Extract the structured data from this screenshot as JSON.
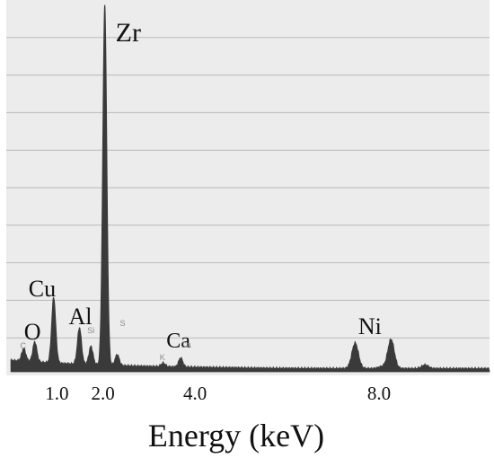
{
  "chart_data": {
    "type": "area",
    "title": "",
    "xlabel": "Energy (keV)",
    "ylabel": "",
    "xlim": [
      -0.1,
      10.4
    ],
    "ylim": [
      0,
      100
    ],
    "grid": true,
    "x_ticks": [
      {
        "value": 1.0,
        "label": "1.0"
      },
      {
        "value": 2.0,
        "label": "2.0"
      },
      {
        "value": 4.0,
        "label": "4.0"
      },
      {
        "value": 8.0,
        "label": "8.0"
      }
    ],
    "peaks": [
      {
        "element": "C",
        "energy": 0.28,
        "height": 3.5
      },
      {
        "element": "O",
        "energy": 0.52,
        "height": 5.5
      },
      {
        "element": "Cu",
        "energy": 0.93,
        "height": 18
      },
      {
        "element": "Al",
        "energy": 1.49,
        "height": 10
      },
      {
        "element": "Si",
        "energy": 1.74,
        "height": 5
      },
      {
        "element": "Zr",
        "energy": 2.04,
        "height": 99
      },
      {
        "element": "S",
        "energy": 2.31,
        "height": 3
      },
      {
        "element": "K",
        "energy": 3.31,
        "height": 1
      },
      {
        "element": "Ca",
        "energy": 3.69,
        "height": 2.5
      },
      {
        "element": "Ni",
        "energy": 7.48,
        "height": 7
      },
      {
        "element": "Ni",
        "energy": 8.26,
        "height": 8
      },
      {
        "element": "Cu",
        "energy": 8.05,
        "height": 0.5
      },
      {
        "element": "",
        "energy": 9.0,
        "height": 1
      }
    ],
    "element_labels": [
      {
        "text": "Zr",
        "energy": 2.04,
        "size": "large"
      },
      {
        "text": "Cu",
        "energy": 0.93,
        "size": "large"
      },
      {
        "text": "Al",
        "energy": 1.49,
        "size": "large"
      },
      {
        "text": "O",
        "energy": 0.52,
        "size": "large"
      },
      {
        "text": "Ca",
        "energy": 3.69,
        "size": "large"
      },
      {
        "text": "Ni",
        "energy": 7.9,
        "size": "large"
      },
      {
        "text": "C",
        "energy": 0.28,
        "size": "small"
      },
      {
        "text": "Si",
        "energy": 1.74,
        "size": "small"
      },
      {
        "text": "S",
        "energy": 2.31,
        "size": "small"
      },
      {
        "text": "K",
        "energy": 3.31,
        "size": "small"
      },
      {
        "text": "Ca",
        "energy": 3.69,
        "size": "small"
      }
    ],
    "series_color": "#3a3a3a",
    "grid_color": "#b9b9b9",
    "background": "#ececec"
  }
}
